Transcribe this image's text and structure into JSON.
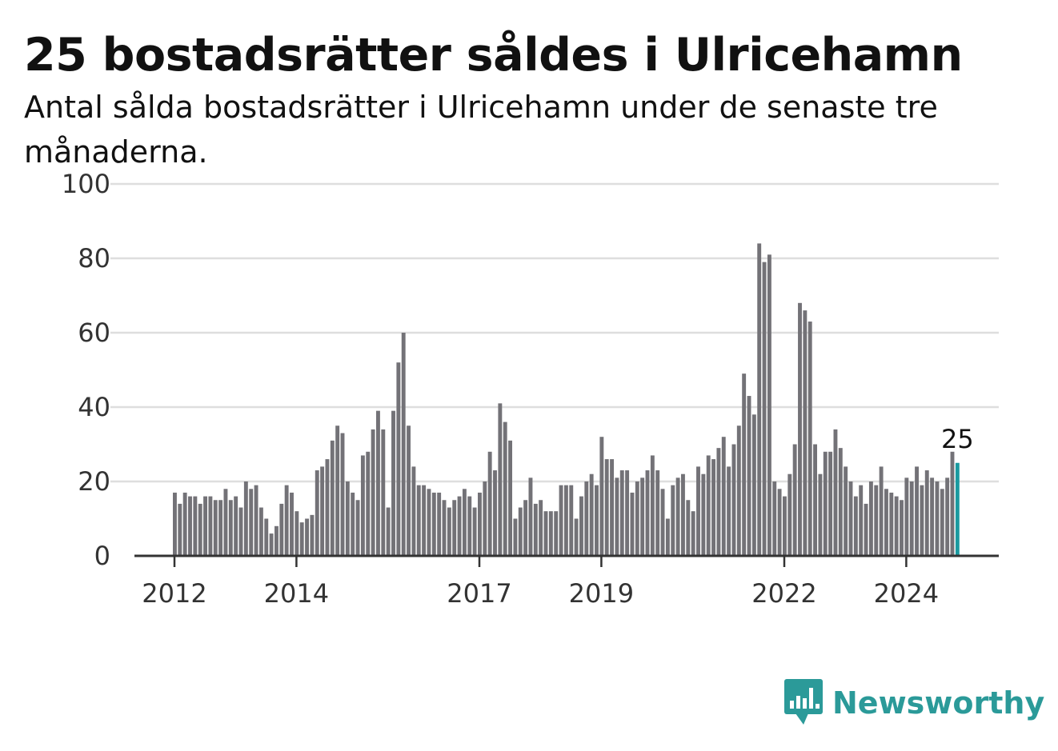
{
  "header": {
    "title": "25 bostadsrätter såldes i Ulricehamn",
    "subtitle": "Antal sålda bostadsrätter i Ulricehamn under de senaste tre månaderna."
  },
  "brand": {
    "name": "Newsworthy",
    "icon": "newsworthy-logo-icon",
    "color": "#2b9a99"
  },
  "colors": {
    "bar": "#737277",
    "highlight": "#1a9aa0",
    "grid": "#dedede",
    "axis": "#333333"
  },
  "chart_data": {
    "type": "bar",
    "title": "25 bostadsrätter såldes i Ulricehamn",
    "subtitle": "Antal sålda bostadsrätter i Ulricehamn under de senaste tre månaderna.",
    "xlabel": "",
    "ylabel": "",
    "ylim": [
      0,
      100
    ],
    "yticks": [
      0,
      20,
      40,
      60,
      80,
      100
    ],
    "x_start": "2012-01",
    "x_ticks": [
      {
        "label": "2012",
        "index": 0
      },
      {
        "label": "2014",
        "index": 24
      },
      {
        "label": "2017",
        "index": 60
      },
      {
        "label": "2019",
        "index": 84
      },
      {
        "label": "2022",
        "index": 120
      },
      {
        "label": "2024",
        "index": 144
      }
    ],
    "grid": true,
    "highlight_last": true,
    "last_value_label": "25",
    "values": [
      17,
      14,
      17,
      16,
      16,
      14,
      16,
      16,
      15,
      15,
      18,
      15,
      16,
      13,
      20,
      18,
      19,
      13,
      10,
      6,
      8,
      14,
      19,
      17,
      12,
      9,
      10,
      11,
      23,
      24,
      26,
      31,
      35,
      33,
      20,
      17,
      15,
      27,
      28,
      34,
      39,
      34,
      13,
      39,
      52,
      60,
      35,
      24,
      19,
      19,
      18,
      17,
      17,
      15,
      13,
      15,
      16,
      18,
      16,
      13,
      17,
      20,
      28,
      23,
      41,
      36,
      31,
      10,
      13,
      15,
      21,
      14,
      15,
      12,
      12,
      12,
      19,
      19,
      19,
      10,
      16,
      20,
      22,
      19,
      32,
      26,
      26,
      21,
      23,
      23,
      17,
      20,
      21,
      23,
      27,
      23,
      18,
      10,
      19,
      21,
      22,
      15,
      12,
      24,
      22,
      27,
      26,
      29,
      32,
      24,
      30,
      35,
      49,
      43,
      38,
      84,
      79,
      81,
      20,
      18,
      16,
      22,
      30,
      68,
      66,
      63,
      30,
      22,
      28,
      28,
      34,
      29,
      24,
      20,
      16,
      19,
      14,
      20,
      19,
      24,
      18,
      17,
      16,
      15,
      21,
      20,
      24,
      19,
      23,
      21,
      20,
      18,
      21,
      28,
      25
    ]
  }
}
